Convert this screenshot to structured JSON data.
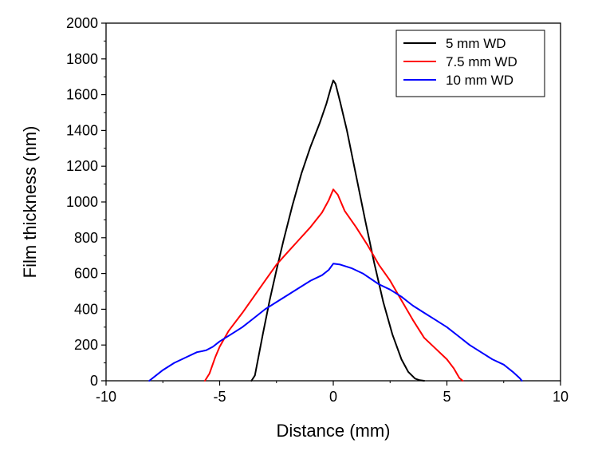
{
  "chart_data": {
    "type": "line",
    "title": "",
    "xlabel": "Distance (mm)",
    "ylabel": "Film thickness (nm)",
    "xlim": [
      -10,
      10
    ],
    "ylim": [
      0,
      2000
    ],
    "xticks": [
      -10,
      -5,
      0,
      5,
      10
    ],
    "xtick_labels": [
      "-10",
      "-5",
      "0",
      "5",
      "10"
    ],
    "yticks": [
      0,
      200,
      400,
      600,
      800,
      1000,
      1200,
      1400,
      1600,
      1800,
      2000
    ],
    "ytick_labels": [
      "0",
      "200",
      "400",
      "600",
      "800",
      "1000",
      "1200",
      "1400",
      "1600",
      "1800",
      "2000"
    ],
    "legend_position": "top-right",
    "series": [
      {
        "name": "5 mm WD",
        "color": "#000000",
        "x": [
          -3.6,
          -3.45,
          -3.3,
          -3.1,
          -2.8,
          -2.5,
          -2.2,
          -1.8,
          -1.4,
          -1.0,
          -0.6,
          -0.3,
          -0.1,
          0.0,
          0.1,
          0.3,
          0.6,
          1.0,
          1.4,
          1.8,
          2.2,
          2.6,
          3.0,
          3.3,
          3.6,
          3.8,
          4.0
        ],
        "y": [
          0,
          30,
          130,
          260,
          450,
          620,
          780,
          980,
          1160,
          1310,
          1440,
          1550,
          1640,
          1680,
          1660,
          1560,
          1400,
          1150,
          900,
          660,
          440,
          260,
          120,
          50,
          12,
          3,
          0
        ]
      },
      {
        "name": "7.5 mm WD",
        "color": "#ff0000",
        "x": [
          -5.65,
          -5.45,
          -5.2,
          -5.0,
          -4.6,
          -4.0,
          -3.5,
          -3.0,
          -2.5,
          -2.0,
          -1.5,
          -1.0,
          -0.5,
          -0.2,
          0.0,
          0.2,
          0.5,
          1.0,
          1.5,
          2.0,
          2.5,
          3.0,
          3.5,
          4.0,
          4.5,
          5.0,
          5.3,
          5.55,
          5.7
        ],
        "y": [
          0,
          40,
          130,
          190,
          280,
          380,
          470,
          560,
          650,
          720,
          790,
          860,
          940,
          1010,
          1070,
          1040,
          950,
          860,
          760,
          650,
          560,
          450,
          340,
          240,
          180,
          120,
          70,
          15,
          0
        ]
      },
      {
        "name": "10 mm WD",
        "color": "#0000ff",
        "x": [
          -8.1,
          -7.8,
          -7.5,
          -7.0,
          -6.5,
          -6.0,
          -5.6,
          -5.3,
          -5.0,
          -4.5,
          -4.0,
          -3.5,
          -3.0,
          -2.5,
          -2.0,
          -1.5,
          -1.0,
          -0.5,
          -0.2,
          0.0,
          0.3,
          0.8,
          1.3,
          2.0,
          2.5,
          3.0,
          3.5,
          4.0,
          4.5,
          5.0,
          5.5,
          6.0,
          6.5,
          7.0,
          7.5,
          7.9,
          8.2,
          8.3
        ],
        "y": [
          0,
          30,
          60,
          100,
          130,
          160,
          170,
          190,
          220,
          260,
          300,
          350,
          400,
          440,
          480,
          520,
          560,
          590,
          620,
          655,
          650,
          630,
          600,
          540,
          510,
          470,
          420,
          380,
          340,
          300,
          250,
          200,
          160,
          120,
          90,
          50,
          15,
          0
        ]
      }
    ]
  }
}
